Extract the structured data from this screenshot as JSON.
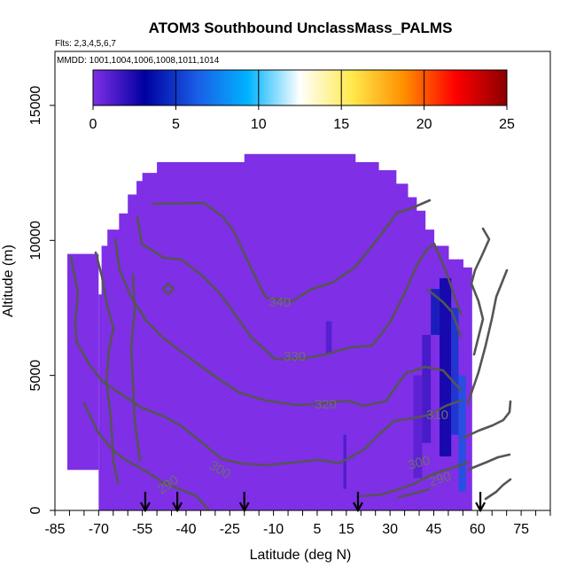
{
  "chart_data": {
    "type": "heatmap",
    "title": "ATOM3 Southbound UnclassMass_PALMS",
    "flights_note": "Flts: 2,3,4,5,6,7",
    "dates_note": "MMDD: 1001,1004,1006,1008,1011,1014",
    "xlabel": "Latitude (deg N)",
    "ylabel": "Altitude (m)",
    "xlim": [
      -85,
      85
    ],
    "ylim": [
      0,
      17000
    ],
    "x_ticks": [
      -85,
      -70,
      -55,
      -40,
      -25,
      -10,
      5,
      15,
      30,
      45,
      60,
      75
    ],
    "y_ticks": [
      0,
      5000,
      10000,
      15000
    ],
    "colorbar": {
      "min": 0,
      "max": 25,
      "ticks": [
        0,
        5,
        10,
        15,
        20,
        25
      ],
      "colors": [
        "#7f2fe6",
        "#0000a0",
        "#1a5ce6",
        "#00b4ff",
        "#ffffff",
        "#ffe94d",
        "#ff9000",
        "#ff0000",
        "#8b0000"
      ]
    },
    "heatmap_fill_value": 0,
    "high_values": [
      {
        "lat": 47,
        "alt": 8000,
        "value": 3
      },
      {
        "lat": 52,
        "alt": 6500,
        "value": 4
      },
      {
        "lat": 54,
        "alt": 2000,
        "value": 5
      },
      {
        "lat": 44,
        "alt": 3500,
        "value": 2
      },
      {
        "lat": 38,
        "alt": 4500,
        "value": 1
      }
    ],
    "contour_labels": [
      "340",
      "330",
      "320",
      "310",
      "300",
      "290",
      "300",
      "290"
    ],
    "flight_markers_lat": [
      -54,
      -43,
      -20,
      19,
      61
    ]
  }
}
